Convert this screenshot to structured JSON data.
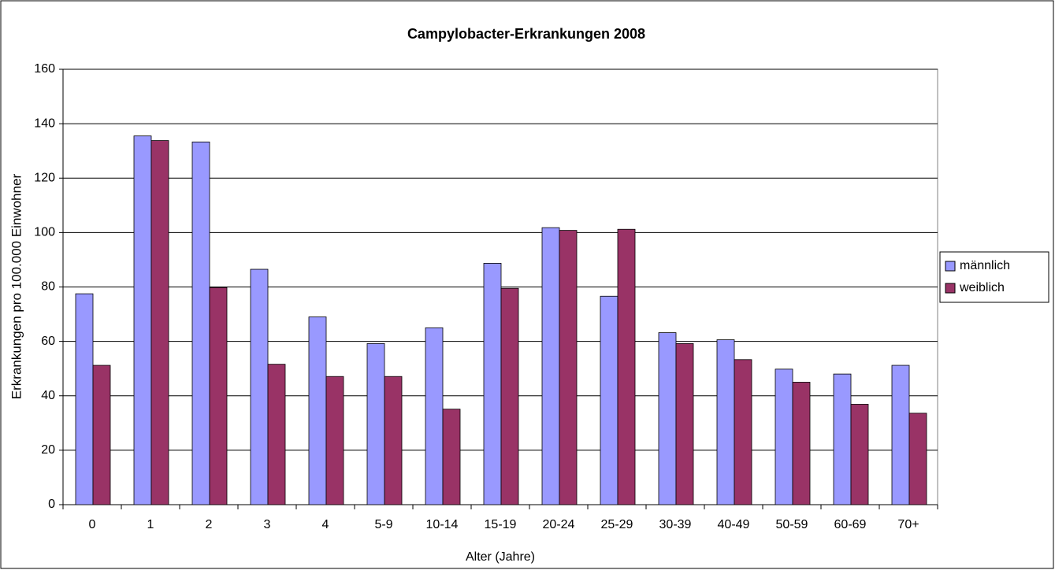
{
  "chart_data": {
    "type": "bar",
    "title": "Campylobacter-Erkrankungen 2008",
    "x_label": "Alter (Jahre)",
    "y_label": "Erkrankungen pro 100.000 Einwohner",
    "categories": [
      "0",
      "1",
      "2",
      "3",
      "4",
      "5-9",
      "10-14",
      "15-19",
      "20-24",
      "25-29",
      "30-39",
      "40-49",
      "50-59",
      "60-69",
      "70+"
    ],
    "series": [
      {
        "name": "männlich",
        "color": "#9999ff",
        "values": [
          77.5,
          135.5,
          133.3,
          86.5,
          69,
          59.2,
          65,
          88.7,
          101.8,
          76.6,
          63.2,
          60.6,
          49.8,
          48,
          51.2
        ]
      },
      {
        "name": "weiblich",
        "color": "#993366",
        "values": [
          51.2,
          133.8,
          79.8,
          51.6,
          47.1,
          47.1,
          35.1,
          79.5,
          100.8,
          101.2,
          59.2,
          53.3,
          45,
          36.9,
          33.6
        ]
      }
    ],
    "ylim": [
      0,
      160
    ],
    "yticks": [
      0,
      20,
      40,
      60,
      80,
      100,
      120,
      140,
      160
    ],
    "grid": true,
    "legend": "right"
  }
}
